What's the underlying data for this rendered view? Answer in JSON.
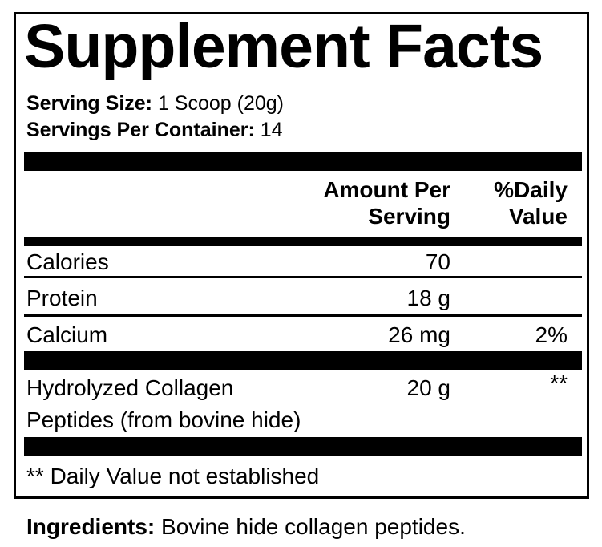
{
  "title": "Supplement Facts",
  "serving_size": {
    "label": "Serving Size:",
    "value": "1 Scoop (20g)"
  },
  "servings_per_container": {
    "label": "Servings Per Container:",
    "value": "14"
  },
  "header": {
    "amount_line1": "Amount Per",
    "amount_line2": "Serving",
    "dv_line1": "%Daily",
    "dv_line2": "Value"
  },
  "rows": [
    {
      "name": "Calories",
      "amount": "70",
      "dv": ""
    },
    {
      "name": "Protein",
      "amount": "18 g",
      "dv": ""
    },
    {
      "name": "Calcium",
      "amount": "26 mg",
      "dv": "2%"
    },
    {
      "name": "Hydrolyzed Collagen",
      "name_line2": "Peptides (from bovine hide)",
      "amount": "20 g",
      "dv": "**"
    }
  ],
  "footnote": "** Daily Value not established",
  "ingredients": {
    "label": "Ingredients:",
    "value": "Bovine hide collagen peptides."
  }
}
